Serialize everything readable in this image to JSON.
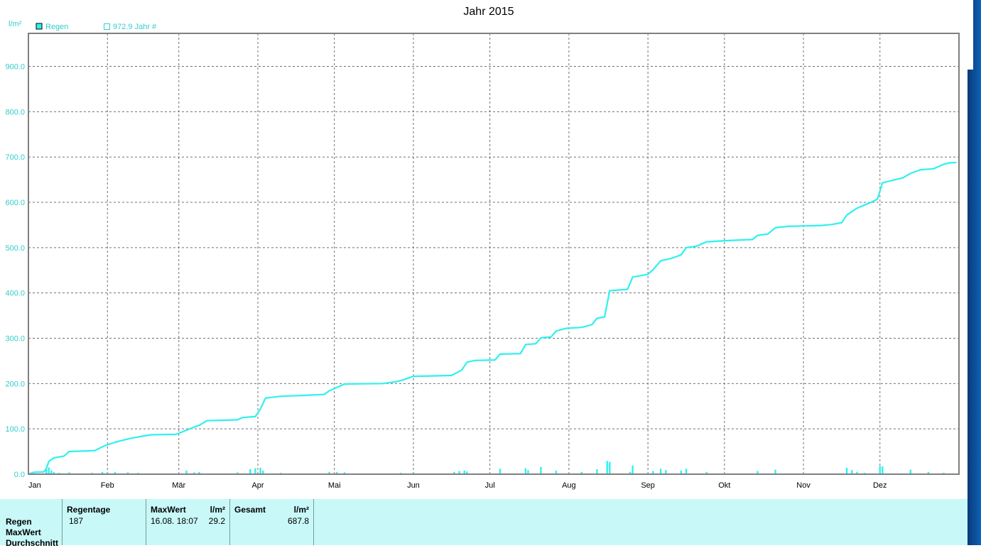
{
  "chart_data": {
    "type": "line",
    "title": "Jahr 2015",
    "ylabel": "l/m²",
    "ylim": [
      0,
      972.9
    ],
    "yticks": [
      "0.0",
      "100.0",
      "200.0",
      "300.0",
      "400.0",
      "500.0",
      "600.0",
      "700.0",
      "800.0",
      "900.0"
    ],
    "xlim": [
      "2015-01-01",
      "2015-12-31"
    ],
    "month_ticks": [
      {
        "label": "Jan",
        "date": "2015-01-01"
      },
      {
        "label": "Feb",
        "date": "2015-02-01"
      },
      {
        "label": "Mär",
        "date": "2015-03-01"
      },
      {
        "label": "Apr",
        "date": "2015-04-01"
      },
      {
        "label": "Mai",
        "date": "2015-05-01"
      },
      {
        "label": "Jun",
        "date": "2015-06-01"
      },
      {
        "label": "Jul",
        "date": "2015-07-01"
      },
      {
        "label": "Aug",
        "date": "2015-08-01"
      },
      {
        "label": "Sep",
        "date": "2015-09-01"
      },
      {
        "label": "Okt",
        "date": "2015-10-01"
      },
      {
        "label": "Nov",
        "date": "2015-11-01"
      },
      {
        "label": "Dez",
        "date": "2015-12-01"
      }
    ],
    "grid": true,
    "legend": [
      {
        "label": "Regen",
        "marker": "filled"
      },
      {
        "label": "972.9 Jahr #",
        "marker": "hollow"
      }
    ],
    "reference_line": 972.9,
    "cumulative": {
      "name": "Regen",
      "points": [
        [
          "2015-01-01",
          0
        ],
        [
          "2015-01-03",
          4
        ],
        [
          "2015-01-07",
          5
        ],
        [
          "2015-01-08",
          12
        ],
        [
          "2015-01-09",
          28
        ],
        [
          "2015-01-11",
          36
        ],
        [
          "2015-01-15",
          40
        ],
        [
          "2015-01-17",
          50
        ],
        [
          "2015-01-27",
          52
        ],
        [
          "2015-01-31",
          63
        ],
        [
          "2015-02-05",
          72
        ],
        [
          "2015-02-10",
          79
        ],
        [
          "2015-02-14",
          83
        ],
        [
          "2015-02-18",
          87
        ],
        [
          "2015-02-28",
          88
        ],
        [
          "2015-03-04",
          97
        ],
        [
          "2015-03-07",
          104
        ],
        [
          "2015-03-09",
          108
        ],
        [
          "2015-03-12",
          118
        ],
        [
          "2015-03-24",
          120
        ],
        [
          "2015-03-26",
          125
        ],
        [
          "2015-03-31",
          127
        ],
        [
          "2015-04-02",
          144
        ],
        [
          "2015-04-04",
          168
        ],
        [
          "2015-04-10",
          172
        ],
        [
          "2015-04-20",
          174
        ],
        [
          "2015-04-27",
          176
        ],
        [
          "2015-04-29",
          184
        ],
        [
          "2015-05-01",
          189
        ],
        [
          "2015-05-05",
          199
        ],
        [
          "2015-05-20",
          200
        ],
        [
          "2015-05-25",
          204
        ],
        [
          "2015-05-28",
          208
        ],
        [
          "2015-06-01",
          216
        ],
        [
          "2015-06-10",
          217
        ],
        [
          "2015-06-16",
          218
        ],
        [
          "2015-06-20",
          230
        ],
        [
          "2015-06-22",
          247
        ],
        [
          "2015-06-25",
          251
        ],
        [
          "2015-07-03",
          252
        ],
        [
          "2015-07-05",
          265
        ],
        [
          "2015-07-13",
          266
        ],
        [
          "2015-07-15",
          286
        ],
        [
          "2015-07-19",
          288
        ],
        [
          "2015-07-21",
          301
        ],
        [
          "2015-07-25",
          303
        ],
        [
          "2015-07-27",
          316
        ],
        [
          "2015-07-31",
          322
        ],
        [
          "2015-08-06",
          324
        ],
        [
          "2015-08-10",
          330
        ],
        [
          "2015-08-12",
          344
        ],
        [
          "2015-08-15",
          347
        ],
        [
          "2015-08-16",
          376
        ],
        [
          "2015-08-17",
          405
        ],
        [
          "2015-08-24",
          408
        ],
        [
          "2015-08-26",
          435
        ],
        [
          "2015-09-01",
          441
        ],
        [
          "2015-09-03",
          451
        ],
        [
          "2015-09-06",
          471
        ],
        [
          "2015-09-10",
          476
        ],
        [
          "2015-09-14",
          484
        ],
        [
          "2015-09-16",
          500
        ],
        [
          "2015-09-20",
          503
        ],
        [
          "2015-09-24",
          513
        ],
        [
          "2015-10-04",
          516
        ],
        [
          "2015-10-12",
          518
        ],
        [
          "2015-10-14",
          527
        ],
        [
          "2015-10-18",
          530
        ],
        [
          "2015-10-21",
          544
        ],
        [
          "2015-10-26",
          547
        ],
        [
          "2015-11-08",
          549
        ],
        [
          "2015-11-12",
          551
        ],
        [
          "2015-11-16",
          555
        ],
        [
          "2015-11-18",
          572
        ],
        [
          "2015-11-22",
          587
        ],
        [
          "2015-11-27",
          599
        ],
        [
          "2015-11-30",
          607
        ],
        [
          "2015-12-01",
          625
        ],
        [
          "2015-12-02",
          643
        ],
        [
          "2015-12-07",
          650
        ],
        [
          "2015-12-10",
          654
        ],
        [
          "2015-12-13",
          664
        ],
        [
          "2015-12-17",
          672
        ],
        [
          "2015-12-22",
          674
        ],
        [
          "2015-12-26",
          684
        ],
        [
          "2015-12-28",
          687
        ],
        [
          "2015-12-31",
          687.8
        ]
      ]
    },
    "daily": {
      "name": "Regen",
      "points": [
        [
          "2015-01-08",
          11
        ],
        [
          "2015-01-09",
          15
        ],
        [
          "2015-01-10",
          8
        ],
        [
          "2015-01-11",
          5
        ],
        [
          "2015-01-13",
          3
        ],
        [
          "2015-01-17",
          4
        ],
        [
          "2015-01-26",
          3
        ],
        [
          "2015-01-30",
          5
        ],
        [
          "2015-02-01",
          4
        ],
        [
          "2015-02-04",
          5
        ],
        [
          "2015-02-09",
          4
        ],
        [
          "2015-02-13",
          3
        ],
        [
          "2015-03-04",
          8
        ],
        [
          "2015-03-07",
          4
        ],
        [
          "2015-03-09",
          5
        ],
        [
          "2015-03-24",
          4
        ],
        [
          "2015-03-29",
          11
        ],
        [
          "2015-03-31",
          13
        ],
        [
          "2015-04-02",
          14
        ],
        [
          "2015-04-03",
          8
        ],
        [
          "2015-04-10",
          3
        ],
        [
          "2015-04-29",
          5
        ],
        [
          "2015-05-02",
          5
        ],
        [
          "2015-05-05",
          4
        ],
        [
          "2015-05-27",
          3
        ],
        [
          "2015-06-01",
          4
        ],
        [
          "2015-06-17",
          5
        ],
        [
          "2015-06-19",
          7
        ],
        [
          "2015-06-21",
          8
        ],
        [
          "2015-06-22",
          6
        ],
        [
          "2015-07-05",
          12
        ],
        [
          "2015-07-15",
          13
        ],
        [
          "2015-07-16",
          9
        ],
        [
          "2015-07-21",
          16
        ],
        [
          "2015-07-27",
          8
        ],
        [
          "2015-08-06",
          5
        ],
        [
          "2015-08-12",
          11
        ],
        [
          "2015-08-16",
          29.2
        ],
        [
          "2015-08-17",
          27
        ],
        [
          "2015-08-26",
          19
        ],
        [
          "2015-08-25",
          5
        ],
        [
          "2015-09-03",
          7
        ],
        [
          "2015-09-06",
          12
        ],
        [
          "2015-09-08",
          9
        ],
        [
          "2015-09-14",
          8
        ],
        [
          "2015-09-16",
          12
        ],
        [
          "2015-09-24",
          5
        ],
        [
          "2015-10-14",
          7
        ],
        [
          "2015-10-21",
          10
        ],
        [
          "2015-11-18",
          14
        ],
        [
          "2015-11-20",
          9
        ],
        [
          "2015-11-22",
          5
        ],
        [
          "2015-11-25",
          3
        ],
        [
          "2015-12-01",
          18
        ],
        [
          "2015-12-02",
          17
        ],
        [
          "2015-12-13",
          10
        ],
        [
          "2015-12-20",
          5
        ],
        [
          "2015-12-26",
          3
        ]
      ]
    },
    "colors": {
      "series": "#2ff0f0",
      "axis_text": "#33cccc",
      "grid": "#707070",
      "frame": "#808080"
    }
  },
  "stats": {
    "row_labels": [
      "Regen",
      "MaxWert",
      "Durchschnitt"
    ],
    "columns": [
      {
        "header": "Regentage",
        "value": "187"
      },
      {
        "header": "MaxWert",
        "header_right": "l/m²",
        "value": "16.08.  18:07",
        "value_right": "29.2"
      },
      {
        "header": "Gesamt",
        "header_right": "l/m²",
        "value_right": "687.8"
      }
    ]
  }
}
